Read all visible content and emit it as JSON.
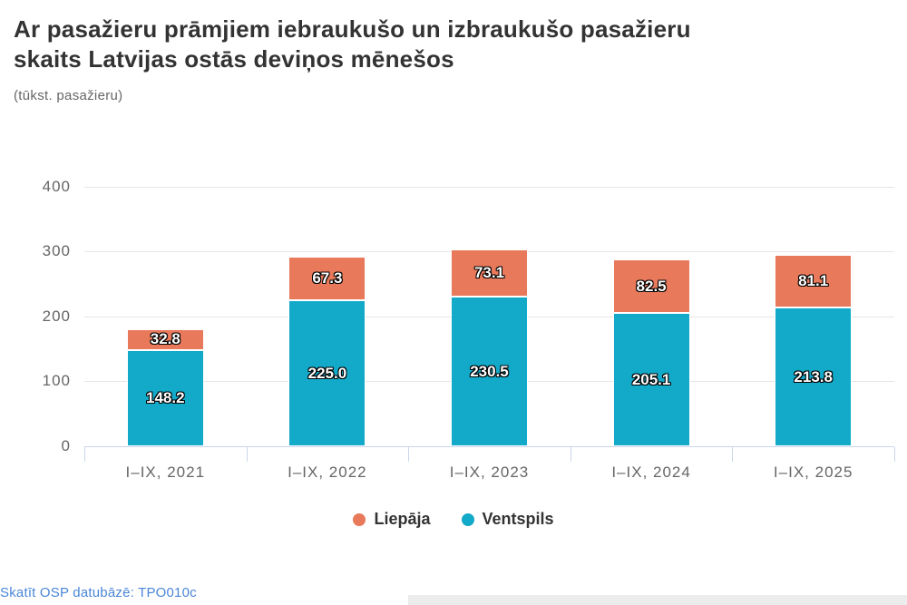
{
  "page": {
    "title_line1": "Ar pasažieru prāmjiem iebraukušo un izbraukušo pasažieru",
    "title_line2": "skaits Latvijas ostās deviņos mēnešos",
    "subtitle": "(tūkst. pasažieru)",
    "footer_link": "Skatīt OSP datubāzē: TPO010c"
  },
  "chart_data": {
    "type": "bar",
    "stacked": true,
    "title": "Ar pasažieru prāmjiem iebraukušo un izbraukušo pasažieru skaits Latvijas ostās deviņos mēnešos",
    "subtitle": "(tūkst. pasažieru)",
    "categories": [
      "I–IX, 2021",
      "I–IX, 2022",
      "I–IX, 2023",
      "I–IX, 2024",
      "I–IX, 2025"
    ],
    "series": [
      {
        "name": "Liepāja",
        "color": "#e8795b",
        "values": [
          32.8,
          67.3,
          73.1,
          82.5,
          81.1
        ],
        "labels": [
          "32.8",
          "67.3",
          "73.1",
          "82.5",
          "81.1"
        ]
      },
      {
        "name": "Ventspils",
        "color": "#13aac9",
        "values": [
          148.2,
          225.0,
          230.5,
          205.1,
          213.8
        ],
        "labels": [
          "148.2",
          "225.0",
          "230.5",
          "205.1",
          "213.8"
        ]
      }
    ],
    "stack_bottom_series": "Ventspils",
    "stack_totals": [
      181.0,
      292.3,
      303.6,
      287.6,
      294.9
    ],
    "xlabel": "",
    "ylabel": "",
    "yticks": [
      0,
      100,
      200,
      300,
      400
    ],
    "ylim": [
      0,
      400
    ],
    "grid": true,
    "legend_position": "bottom-center",
    "colors": {
      "grid": "#e6e6e6",
      "axis_line": "#ccd6eb",
      "axis_text": "#666666",
      "title_text": "#333333",
      "link_text": "#4a86d8",
      "bar_label_text": "#ffffff",
      "bar_label_outline": "#000000",
      "background": "#ffffff"
    }
  }
}
